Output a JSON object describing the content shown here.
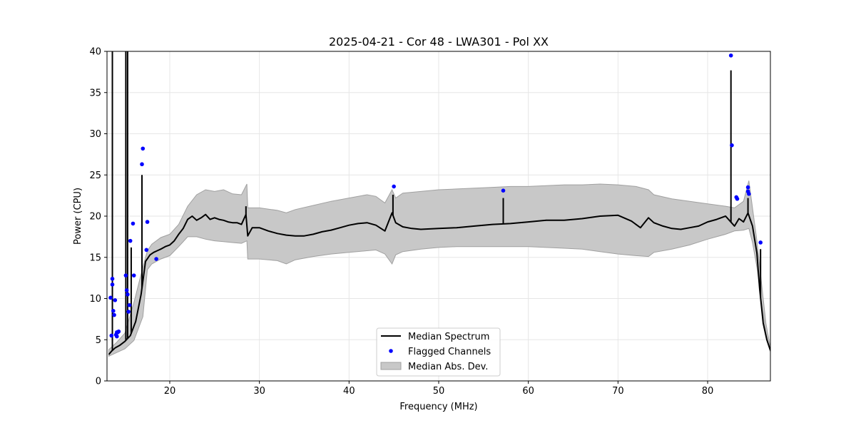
{
  "chart_data": {
    "type": "line",
    "title": "2025-04-21 - Cor 48 - LWA301 - Pol XX",
    "xlabel": "Frequency (MHz)",
    "ylabel": "Power (CPU)",
    "xlim": [
      13.0,
      87.0
    ],
    "ylim": [
      0,
      40
    ],
    "xticks": [
      20,
      30,
      40,
      50,
      60,
      70,
      80
    ],
    "yticks": [
      0,
      5,
      10,
      15,
      20,
      25,
      30,
      35,
      40
    ],
    "grid": true,
    "legend": {
      "position": "bottom-center",
      "entries": [
        "Median Spectrum",
        "Flagged Channels",
        "Median Abs. Dev."
      ]
    },
    "colors": {
      "median": "#000000",
      "flagged": "#0000ff",
      "band_fill": "#c8c8c8",
      "band_edge": "#a0a0a0"
    },
    "series": [
      {
        "name": "Median Spectrum",
        "x": [
          13.2,
          13.5,
          13.9,
          14.4,
          15.0,
          15.6,
          16.2,
          16.8,
          17.3,
          17.8,
          18.2,
          18.6,
          19.0,
          19.5,
          20.0,
          20.5,
          21.0,
          21.5,
          22.0,
          22.5,
          23.0,
          23.5,
          24.0,
          24.5,
          25.0,
          25.5,
          26.0,
          26.5,
          27.0,
          27.5,
          28.0,
          28.5,
          28.7,
          29.2,
          30.0,
          31.0,
          32.0,
          33.0,
          34.0,
          35.0,
          36.0,
          37.0,
          38.0,
          39.0,
          40.0,
          41.0,
          42.0,
          43.0,
          44.0,
          44.8,
          45.2,
          46.0,
          47.0,
          48.0,
          50.0,
          52.0,
          54.0,
          56.0,
          58.0,
          60.0,
          62.0,
          64.0,
          66.0,
          68.0,
          70.0,
          71.5,
          72.5,
          73.4,
          74.0,
          75.0,
          76.0,
          77.0,
          78.0,
          79.0,
          80.0,
          81.0,
          82.0,
          82.5,
          83.0,
          83.5,
          84.0,
          84.5,
          85.0,
          85.5,
          85.8,
          86.2,
          86.6,
          87.0
        ],
        "y": [
          3.2,
          3.6,
          4.0,
          4.3,
          4.8,
          5.5,
          7.2,
          10.5,
          14.5,
          15.3,
          15.6,
          15.8,
          16.0,
          16.3,
          16.5,
          17.0,
          17.8,
          18.5,
          19.6,
          20.0,
          19.5,
          19.8,
          20.2,
          19.6,
          19.8,
          19.6,
          19.5,
          19.3,
          19.2,
          19.2,
          19.0,
          20.2,
          17.6,
          18.6,
          18.6,
          18.2,
          17.9,
          17.7,
          17.6,
          17.6,
          17.8,
          18.1,
          18.3,
          18.6,
          18.9,
          19.1,
          19.2,
          18.9,
          18.2,
          20.4,
          19.2,
          18.7,
          18.5,
          18.4,
          18.5,
          18.6,
          18.8,
          19.0,
          19.1,
          19.3,
          19.5,
          19.5,
          19.7,
          20.0,
          20.1,
          19.4,
          18.6,
          19.8,
          19.2,
          18.8,
          18.5,
          18.4,
          18.6,
          18.8,
          19.3,
          19.6,
          20.0,
          19.4,
          18.8,
          19.7,
          19.3,
          20.4,
          18.8,
          15.5,
          11.2,
          7.0,
          5.0,
          3.7
        ],
        "spikes": [
          {
            "x": 13.6,
            "top": 40
          },
          {
            "x": 15.1,
            "top": 40
          },
          {
            "x": 15.3,
            "top": 40
          },
          {
            "x": 15.7,
            "top": 16.2
          },
          {
            "x": 16.9,
            "top": 25.0
          },
          {
            "x": 28.5,
            "top": 21.2
          },
          {
            "x": 44.9,
            "top": 22.6
          },
          {
            "x": 57.2,
            "top": 22.2
          },
          {
            "x": 82.6,
            "top": 37.7
          },
          {
            "x": 84.5,
            "top": 22.2
          },
          {
            "x": 85.9,
            "top": 16.0
          }
        ]
      },
      {
        "name": "Median Abs. Dev.",
        "x": [
          13.2,
          14.0,
          15.0,
          16.0,
          17.0,
          17.5,
          18.0,
          19.0,
          20.0,
          21.0,
          22.0,
          23.0,
          24.0,
          25.0,
          26.0,
          27.0,
          28.0,
          28.6,
          28.7,
          30.0,
          32.0,
          33.0,
          34.0,
          36.0,
          38.0,
          40.0,
          42.0,
          43.0,
          44.0,
          44.8,
          45.2,
          46.0,
          48.0,
          50.0,
          52.0,
          54.0,
          56.0,
          58.0,
          60.0,
          62.0,
          64.0,
          66.0,
          68.0,
          70.0,
          72.0,
          73.4,
          74.0,
          76.0,
          78.0,
          80.0,
          82.0,
          83.0,
          84.0,
          84.6,
          85.0,
          85.5,
          86.0,
          86.5,
          87.0
        ],
        "upper": [
          3.8,
          4.6,
          5.8,
          9.5,
          13.8,
          15.8,
          16.6,
          17.4,
          17.8,
          19.0,
          21.2,
          22.6,
          23.2,
          23.0,
          23.2,
          22.7,
          22.6,
          23.9,
          21.0,
          21.0,
          20.7,
          20.4,
          20.8,
          21.3,
          21.8,
          22.2,
          22.6,
          22.4,
          21.6,
          23.2,
          22.2,
          22.8,
          23.0,
          23.2,
          23.3,
          23.4,
          23.5,
          23.6,
          23.6,
          23.7,
          23.8,
          23.8,
          23.9,
          23.8,
          23.6,
          23.2,
          22.6,
          22.1,
          21.8,
          21.5,
          21.2,
          21.0,
          21.8,
          24.3,
          21.0,
          17.0,
          12.0,
          7.0,
          4.0
        ],
        "lower": [
          3.0,
          3.4,
          3.9,
          4.9,
          7.8,
          13.5,
          14.2,
          14.8,
          15.2,
          16.3,
          17.5,
          17.5,
          17.2,
          17.0,
          16.9,
          16.8,
          16.7,
          17.0,
          14.8,
          14.8,
          14.6,
          14.2,
          14.7,
          15.1,
          15.4,
          15.6,
          15.8,
          15.9,
          15.4,
          14.2,
          15.3,
          15.7,
          16.0,
          16.2,
          16.3,
          16.3,
          16.3,
          16.3,
          16.3,
          16.2,
          16.1,
          16.0,
          15.7,
          15.4,
          15.2,
          15.1,
          15.6,
          16.0,
          16.5,
          17.2,
          17.8,
          18.2,
          18.3,
          18.5,
          16.8,
          13.8,
          9.5,
          5.8,
          3.5
        ]
      },
      {
        "name": "Flagged Channels",
        "x": [
          13.4,
          13.5,
          13.6,
          13.6,
          13.7,
          13.8,
          13.9,
          14.0,
          14.1,
          14.1,
          14.2,
          14.3,
          15.1,
          15.2,
          15.3,
          15.4,
          15.5,
          15.6,
          15.9,
          16.0,
          16.9,
          17.0,
          17.4,
          17.5,
          18.5,
          45.0,
          57.2,
          82.6,
          82.7,
          83.2,
          83.3,
          84.5,
          84.5,
          84.6,
          85.9
        ],
        "y": [
          10.1,
          5.5,
          12.4,
          11.7,
          8.5,
          8.0,
          9.8,
          5.6,
          5.4,
          5.9,
          5.9,
          6.0,
          12.8,
          11.0,
          10.5,
          8.4,
          9.2,
          17.0,
          19.1,
          12.8,
          26.3,
          28.2,
          15.9,
          19.3,
          14.8,
          23.6,
          23.1,
          39.5,
          28.6,
          22.3,
          22.1,
          23.5,
          23.0,
          22.7,
          16.8
        ]
      }
    ]
  }
}
